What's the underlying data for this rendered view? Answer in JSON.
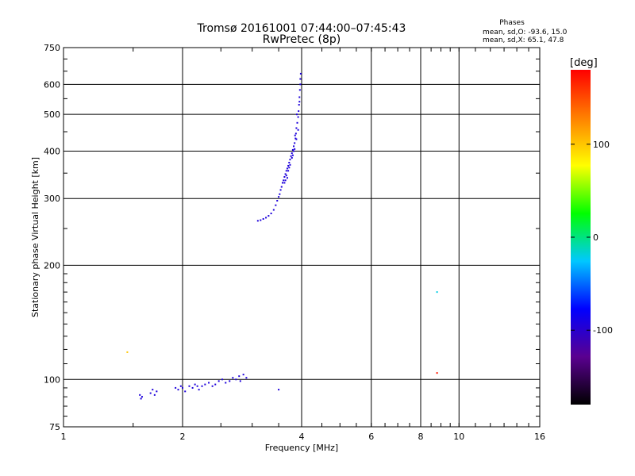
{
  "chart_data": {
    "type": "scatter",
    "title": "Tromsø 20161001 07:44:00–07:45:43",
    "subtitle": "RwPretec (8p)",
    "xlabel": "Frequency [MHz]",
    "ylabel": "Stationary phase Virtual Height [km]",
    "x_scale": "log",
    "y_scale": "log",
    "xlim": [
      1,
      16
    ],
    "ylim": [
      75,
      750
    ],
    "x_ticks": [
      {
        "value": 1,
        "label": "1"
      },
      {
        "value": 2,
        "label": "2"
      },
      {
        "value": 4,
        "label": "4"
      },
      {
        "value": 6,
        "label": "6"
      },
      {
        "value": 8,
        "label": "8"
      },
      {
        "value": 10,
        "label": "10"
      },
      {
        "value": 16,
        "label": "16"
      }
    ],
    "y_ticks": [
      {
        "value": 75,
        "label": "75"
      },
      {
        "value": 100,
        "label": "100"
      },
      {
        "value": 200,
        "label": "200"
      },
      {
        "value": 300,
        "label": "300"
      },
      {
        "value": 400,
        "label": "400"
      },
      {
        "value": 500,
        "label": "500"
      },
      {
        "value": 600,
        "label": "600"
      },
      {
        "value": 750,
        "label": "750"
      }
    ],
    "grid": true,
    "phases": {
      "title": "Phases",
      "line_o": "mean, sd,O: -93.6, 15.0",
      "line_x": "mean, sd,X:  65.1, 47.8"
    },
    "colorbar": {
      "label": "[deg]",
      "ticks": [
        {
          "value": 100,
          "label": "100"
        },
        {
          "value": 0,
          "label": "0"
        },
        {
          "value": -100,
          "label": "-100"
        }
      ],
      "range": [
        -180,
        180
      ],
      "colors": [
        "#000000",
        "#5a0090",
        "#0000ff",
        "#00c8ff",
        "#00ff00",
        "#ffff00",
        "#ff8000",
        "#ff0000"
      ]
    },
    "series": [
      {
        "trace": "F",
        "phase_deg": -93.6,
        "points": [
          [
            3.1,
            262
          ],
          [
            3.15,
            263
          ],
          [
            3.2,
            265
          ],
          [
            3.25,
            267
          ],
          [
            3.3,
            270
          ],
          [
            3.35,
            274
          ],
          [
            3.4,
            280
          ],
          [
            3.44,
            288
          ],
          [
            3.47,
            296
          ],
          [
            3.5,
            303
          ],
          [
            3.52,
            308
          ],
          [
            3.54,
            316
          ],
          [
            3.56,
            322
          ],
          [
            3.58,
            330
          ],
          [
            3.6,
            335
          ],
          [
            3.62,
            342
          ],
          [
            3.64,
            348
          ],
          [
            3.66,
            355
          ],
          [
            3.68,
            360
          ],
          [
            3.7,
            366
          ],
          [
            3.72,
            373
          ],
          [
            3.74,
            380
          ],
          [
            3.76,
            388
          ],
          [
            3.78,
            395
          ],
          [
            3.8,
            403
          ],
          [
            3.82,
            412
          ],
          [
            3.84,
            420
          ],
          [
            3.86,
            432
          ],
          [
            3.87,
            445
          ],
          [
            3.88,
            460
          ],
          [
            3.9,
            475
          ],
          [
            3.92,
            492
          ],
          [
            3.93,
            510
          ],
          [
            3.94,
            530
          ],
          [
            3.95,
            555
          ],
          [
            3.96,
            580
          ],
          [
            3.97,
            600
          ],
          [
            3.97,
            620
          ],
          [
            3.98,
            640
          ],
          [
            3.62,
            330
          ],
          [
            3.66,
            345
          ],
          [
            3.7,
            355
          ],
          [
            3.74,
            368
          ],
          [
            3.78,
            384
          ],
          [
            3.82,
            400
          ],
          [
            3.85,
            440
          ],
          [
            3.89,
            500
          ],
          [
            3.95,
            540
          ],
          [
            3.92,
            455
          ],
          [
            3.88,
            430
          ],
          [
            3.84,
            405
          ],
          [
            3.8,
            390
          ],
          [
            3.72,
            362
          ],
          [
            3.68,
            340
          ],
          [
            3.64,
            335
          ]
        ]
      },
      {
        "trace": "E",
        "phase_deg": -93.6,
        "points": [
          [
            1.56,
            91
          ],
          [
            1.57,
            89
          ],
          [
            1.58,
            90
          ],
          [
            1.66,
            92
          ],
          [
            1.68,
            94
          ],
          [
            1.72,
            93
          ],
          [
            1.7,
            91
          ],
          [
            1.92,
            95
          ],
          [
            1.95,
            94
          ],
          [
            1.98,
            96
          ],
          [
            2.0,
            95
          ],
          [
            2.03,
            93
          ],
          [
            2.08,
            96
          ],
          [
            2.12,
            95
          ],
          [
            2.15,
            97
          ],
          [
            2.18,
            96
          ],
          [
            2.2,
            94
          ],
          [
            2.24,
            96
          ],
          [
            2.28,
            97
          ],
          [
            2.33,
            98
          ],
          [
            2.38,
            96
          ],
          [
            2.42,
            97
          ],
          [
            2.47,
            99
          ],
          [
            2.52,
            100
          ],
          [
            2.57,
            98
          ],
          [
            2.63,
            99
          ],
          [
            2.68,
            101
          ],
          [
            2.73,
            100
          ],
          [
            2.78,
            102
          ],
          [
            2.85,
            103
          ],
          [
            2.8,
            99
          ],
          [
            2.9,
            101
          ],
          [
            3.5,
            94
          ]
        ]
      },
      {
        "trace": "outliers",
        "points_with_phase": [
          {
            "x": 1.45,
            "y": 118,
            "phase_deg": 100
          },
          {
            "x": 8.8,
            "y": 170,
            "phase_deg": -20
          },
          {
            "x": 8.8,
            "y": 104,
            "phase_deg": 170
          }
        ]
      }
    ]
  }
}
